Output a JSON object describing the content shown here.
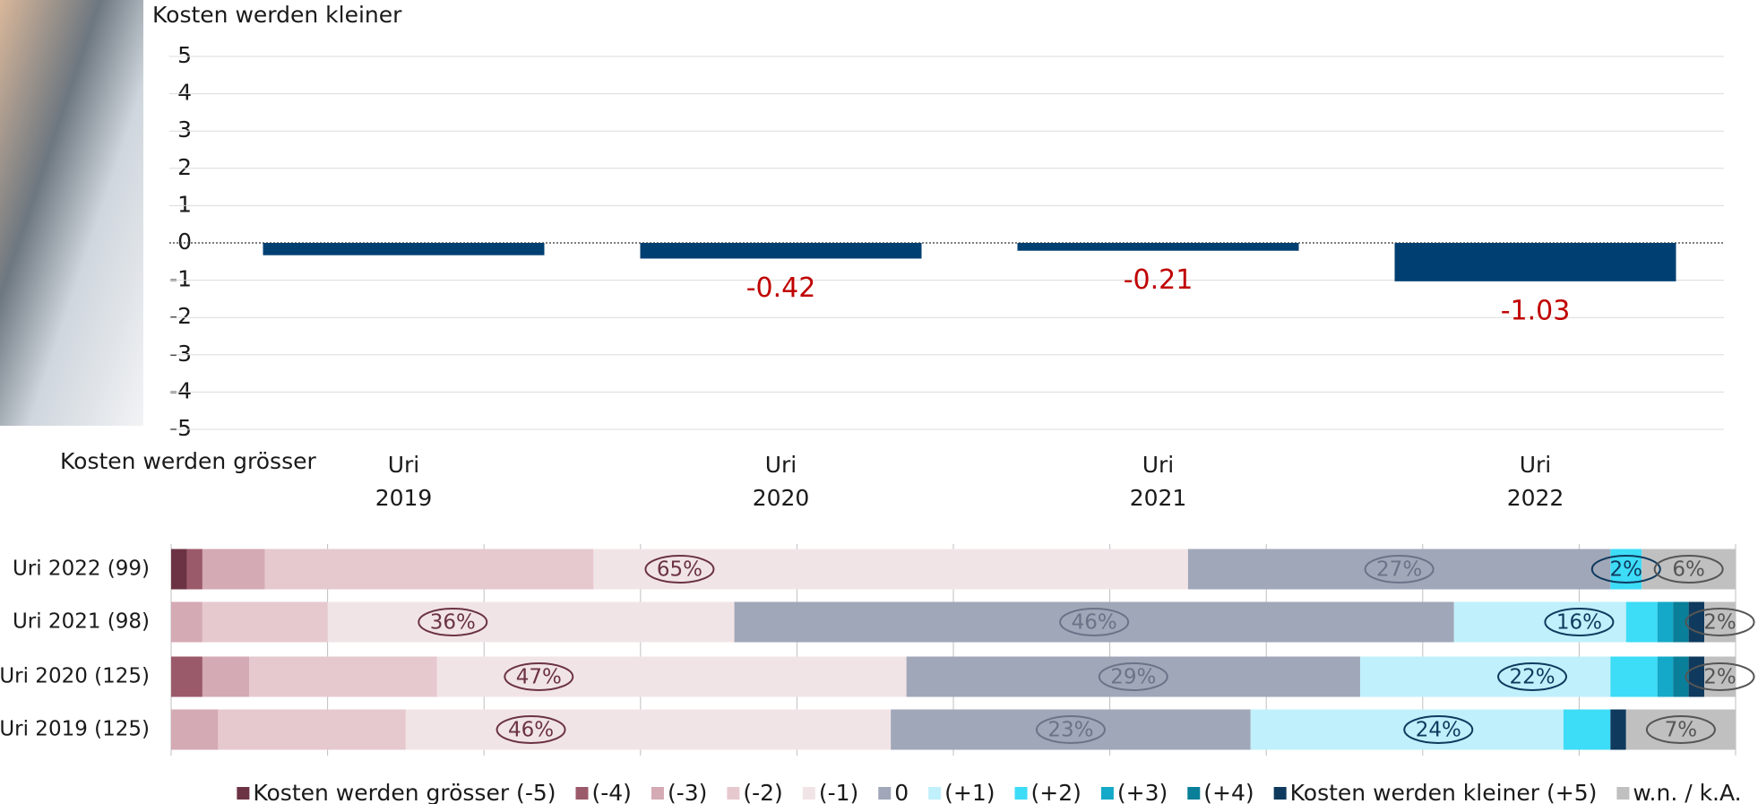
{
  "chart_data": [
    {
      "type": "bar",
      "y_title_top": "Kosten werden kleiner",
      "y_title_bottom": "Kosten werden grösser",
      "categories": [
        "Uri 2019",
        "Uri 2020",
        "Uri 2021",
        "Uri 2022"
      ],
      "values": [
        -0.33,
        -0.42,
        -0.21,
        -1.03
      ],
      "value_labels": [
        null,
        "-0.42",
        "-0.21",
        "-1.03"
      ],
      "color": "#003f72",
      "label_color": "#c00000",
      "ylim": [
        -5,
        5
      ],
      "yticks": [
        -5,
        -4,
        -3,
        -2,
        -1,
        0,
        1,
        2,
        3,
        4,
        5
      ],
      "grid": true
    },
    {
      "type": "stacked-barh",
      "categories": [
        "Uri 2022 (99)",
        "Uri 2021 (98)",
        "Uri 2020 (125)",
        "Uri 2019 (125)"
      ],
      "series": [
        {
          "name": "Kosten werden grösser (-5)",
          "color": "#6b3344",
          "values": [
            1,
            0,
            0,
            0
          ]
        },
        {
          "name": "(-4)",
          "color": "#9b5a6a",
          "values": [
            1,
            0,
            2,
            0
          ]
        },
        {
          "name": "(-3)",
          "color": "#d4aab4",
          "values": [
            4,
            2,
            3,
            3
          ]
        },
        {
          "name": "(-2)",
          "color": "#e6c9cf",
          "values": [
            21,
            8,
            12,
            12
          ]
        },
        {
          "name": "(-1)",
          "color": "#f1e4e7",
          "values": [
            38,
            26,
            30,
            31
          ]
        },
        {
          "name": "0",
          "color": "#a0a7b8",
          "values": [
            27,
            46,
            29,
            23
          ]
        },
        {
          "name": "(+1)",
          "color": "#c0f0fb",
          "values": [
            0,
            11,
            16,
            20
          ]
        },
        {
          "name": "(+2)",
          "color": "#3ddcf7",
          "values": [
            2,
            2,
            3,
            3
          ]
        },
        {
          "name": "(+3)",
          "color": "#14a9c8",
          "values": [
            0,
            1,
            1,
            0
          ]
        },
        {
          "name": "(+4)",
          "color": "#0a7f99",
          "values": [
            0,
            1,
            1,
            0
          ]
        },
        {
          "name": "Kosten werden kleiner (+5)",
          "color": "#0f3a5e",
          "values": [
            0,
            1,
            1,
            1
          ]
        },
        {
          "name": "w.n. / k.A.",
          "color": "#c0c0c0",
          "values": [
            6,
            2,
            2,
            7
          ]
        }
      ],
      "annotations": [
        {
          "negative": "65%",
          "neutral": "27%",
          "positive": "2%",
          "na": "6%"
        },
        {
          "negative": "36%",
          "neutral": "46%",
          "positive": "16%",
          "na": "2%"
        },
        {
          "negative": "47%",
          "neutral": "29%",
          "positive": "22%",
          "na": "2%"
        },
        {
          "negative": "46%",
          "neutral": "23%",
          "positive": "24%",
          "na": "7%"
        }
      ],
      "xlim": [
        0,
        100
      ],
      "xticks": [
        0,
        10,
        20,
        30,
        40,
        50,
        60,
        70,
        80,
        90,
        100
      ],
      "grid": true
    }
  ]
}
